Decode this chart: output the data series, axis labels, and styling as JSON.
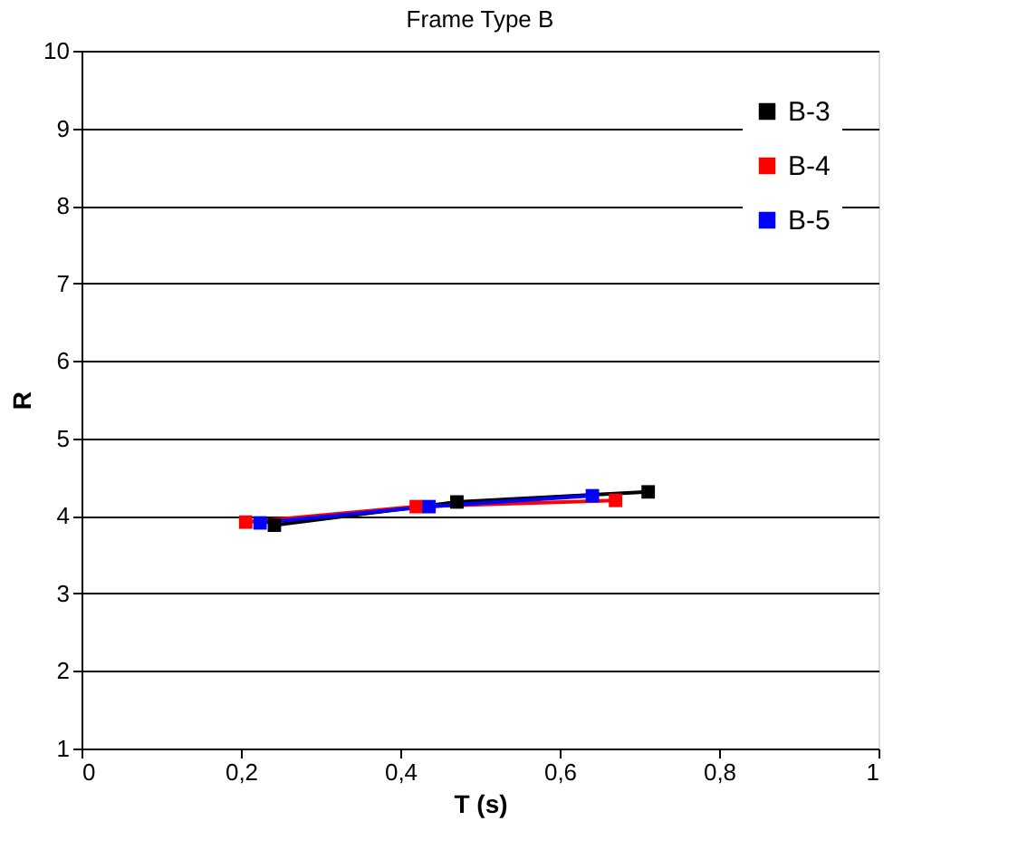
{
  "chart_data": {
    "type": "line",
    "title": "Frame Type B",
    "xlabel": "T (s)",
    "ylabel": "R",
    "xlim": [
      0,
      1
    ],
    "xticks": [
      0,
      {
        "value": 0.2,
        "label": "0,2"
      },
      {
        "value": 0.4,
        "label": "0,4"
      },
      {
        "value": 0.6,
        "label": "0,6"
      },
      {
        "value": 0.8,
        "label": "0,8"
      },
      1
    ],
    "ylim": [
      1,
      10
    ],
    "yticks": [
      1,
      2,
      3,
      4,
      5,
      6,
      7,
      8,
      9,
      10
    ],
    "grid": "y",
    "legend": "top right",
    "marker": "square",
    "line_style": "solid",
    "series": [
      {
        "name": "B-3",
        "color": "#000000",
        "x": [
          0.242,
          0.471,
          0.711
        ],
        "values": [
          3.88,
          4.18,
          4.31
        ]
      },
      {
        "name": "B-4",
        "color": "#ff0000",
        "x": [
          0.206,
          0.42,
          0.67
        ],
        "values": [
          3.92,
          4.12,
          4.2
        ]
      },
      {
        "name": "B-5",
        "color": "#0000ff",
        "x": [
          0.224,
          0.436,
          0.641
        ],
        "values": [
          3.91,
          4.12,
          4.26
        ]
      }
    ]
  }
}
